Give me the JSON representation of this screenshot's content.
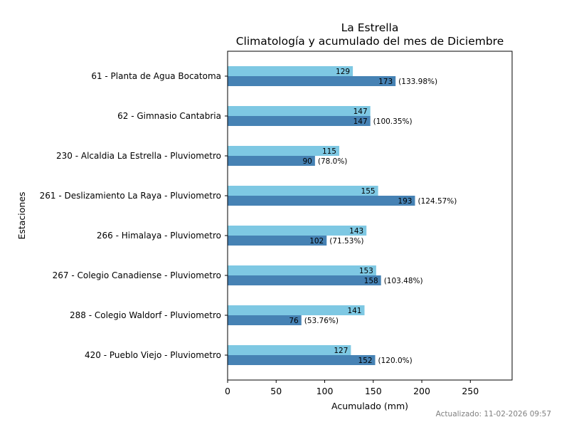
{
  "chart_data": {
    "type": "bar",
    "orientation": "horizontal",
    "title": "La Estrella",
    "subtitle": "Climatología y acumulado del mes de Diciembre",
    "xlabel": "Acumulado (mm)",
    "ylabel": "Estaciones",
    "xlim": [
      0,
      293
    ],
    "xticks": [
      0,
      50,
      100,
      150,
      200,
      250
    ],
    "grid": false,
    "categories": [
      "61 - Planta de Agua Bocatoma",
      "62 - Gimnasio Cantabria",
      "230 - Alcaldia La Estrella - Pluviometro",
      "261 - Deslizamiento La Raya - Pluviometro",
      "266 - Himalaya - Pluviometro",
      "267 - Colegio Canadiense - Pluviometro",
      "288 - Colegio Waldorf - Pluviometro",
      "420 - Pueblo Viejo - Pluviometro"
    ],
    "series": [
      {
        "name": "Climatología",
        "color": "#7ec8e3",
        "values": [
          129,
          147,
          115,
          155,
          143,
          153,
          141,
          127
        ]
      },
      {
        "name": "Acumulado",
        "color": "#4682b4",
        "values": [
          173,
          147,
          90,
          193,
          102,
          158,
          76,
          152
        ],
        "percent_labels": [
          "(133.98%)",
          "(100.35%)",
          "(78.0%)",
          "(124.57%)",
          "(71.53%)",
          "(103.48%)",
          "(53.76%)",
          "(120.0%)"
        ]
      }
    ]
  },
  "footer": {
    "updated": "Actualizado: 11-02-2026 09:57"
  }
}
